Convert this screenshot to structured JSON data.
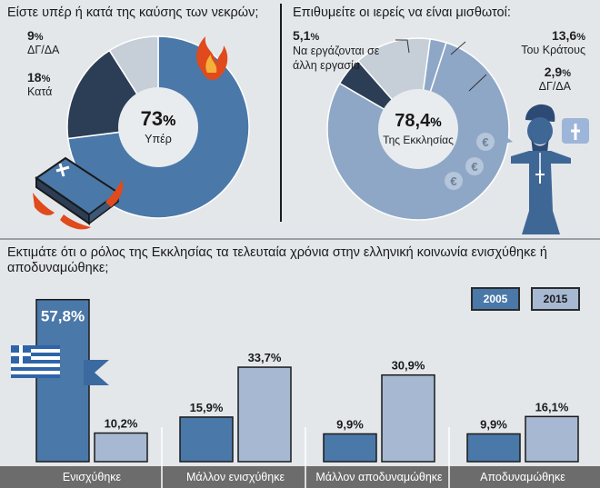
{
  "pie_left": {
    "title": "Είστε υπέρ ή κατά της καύσης των νεκρών;",
    "center_value": "73",
    "center_pct": "%",
    "center_label": "Υπέρ",
    "labels": [
      {
        "value": "9",
        "pct": "%",
        "name": "ΔΓ/ΔΑ"
      },
      {
        "value": "18",
        "pct": "%",
        "name": "Κατά"
      }
    ]
  },
  "pie_right": {
    "title": "Επιθυμείτε οι ιερείς να είναι μισθωτοί:",
    "center_value": "78,4",
    "center_pct": "%",
    "center_label": "Της Εκκλησίας",
    "labels": [
      {
        "value": "5,1",
        "pct": "%",
        "name": "Να εργάζονται σε άλλη εργασία"
      },
      {
        "value": "13,6",
        "pct": "%",
        "name": "Του Κράτους"
      },
      {
        "value": "2,9",
        "pct": "%",
        "name": "ΔΓ/ΔΑ"
      }
    ]
  },
  "bar": {
    "title": "Εκτιμάτε ότι ο ρόλος της Εκκλησίας τα τελευταία χρόνια στην ελληνική κοινωνία ενισχύθηκε ή αποδυναμώθηκε;",
    "legend": [
      "2005",
      "2015"
    ]
  },
  "chart_data": [
    {
      "type": "pie",
      "title": "Είστε υπέρ ή κατά της καύσης των νεκρών;",
      "slices": [
        {
          "label": "Υπέρ",
          "value": 73
        },
        {
          "label": "Κατά",
          "value": 18
        },
        {
          "label": "ΔΓ/ΔΑ",
          "value": 9
        }
      ],
      "unit": "%",
      "colors": [
        "#4a78a8",
        "#2c3e55",
        "#c6ced8"
      ]
    },
    {
      "type": "pie",
      "title": "Επιθυμείτε οι ιερείς να είναι μισθωτοί:",
      "slices": [
        {
          "label": "Της Εκκλησίας",
          "value": 78.4
        },
        {
          "label": "Να εργάζονται σε άλλη εργασία",
          "value": 5.1
        },
        {
          "label": "Του Κράτους",
          "value": 13.6
        },
        {
          "label": "ΔΓ/ΔΑ",
          "value": 2.9
        }
      ],
      "unit": "%",
      "colors": [
        "#8ea7c6",
        "#2c3e55",
        "#c6ced8",
        "#8ea7c6"
      ]
    },
    {
      "type": "bar",
      "title": "Εκτιμάτε ότι ο ρόλος της Εκκλησίας τα τελευταία χρόνια στην ελληνική κοινωνία ενισχύθηκε ή αποδυναμώθηκε;",
      "categories": [
        "Ενισχύθηκε",
        "Μάλλον ενισχύθηκε",
        "Μάλλον αποδυναμώθηκε",
        "Αποδυναμώθηκε"
      ],
      "series": [
        {
          "name": "2005",
          "values": [
            57.8,
            15.9,
            9.9,
            9.9
          ],
          "color": "#4a78a8"
        },
        {
          "name": "2015",
          "values": [
            10.2,
            33.7,
            30.9,
            16.1
          ],
          "color": "#a7b9d2"
        }
      ],
      "value_labels": {
        "2005": [
          "57,8",
          "15,9",
          "9,9",
          "9,9"
        ],
        "2015": [
          "10,2",
          "33,7",
          "30,9",
          "16,1"
        ]
      },
      "unit": "%",
      "ylim": [
        0,
        60
      ]
    }
  ]
}
